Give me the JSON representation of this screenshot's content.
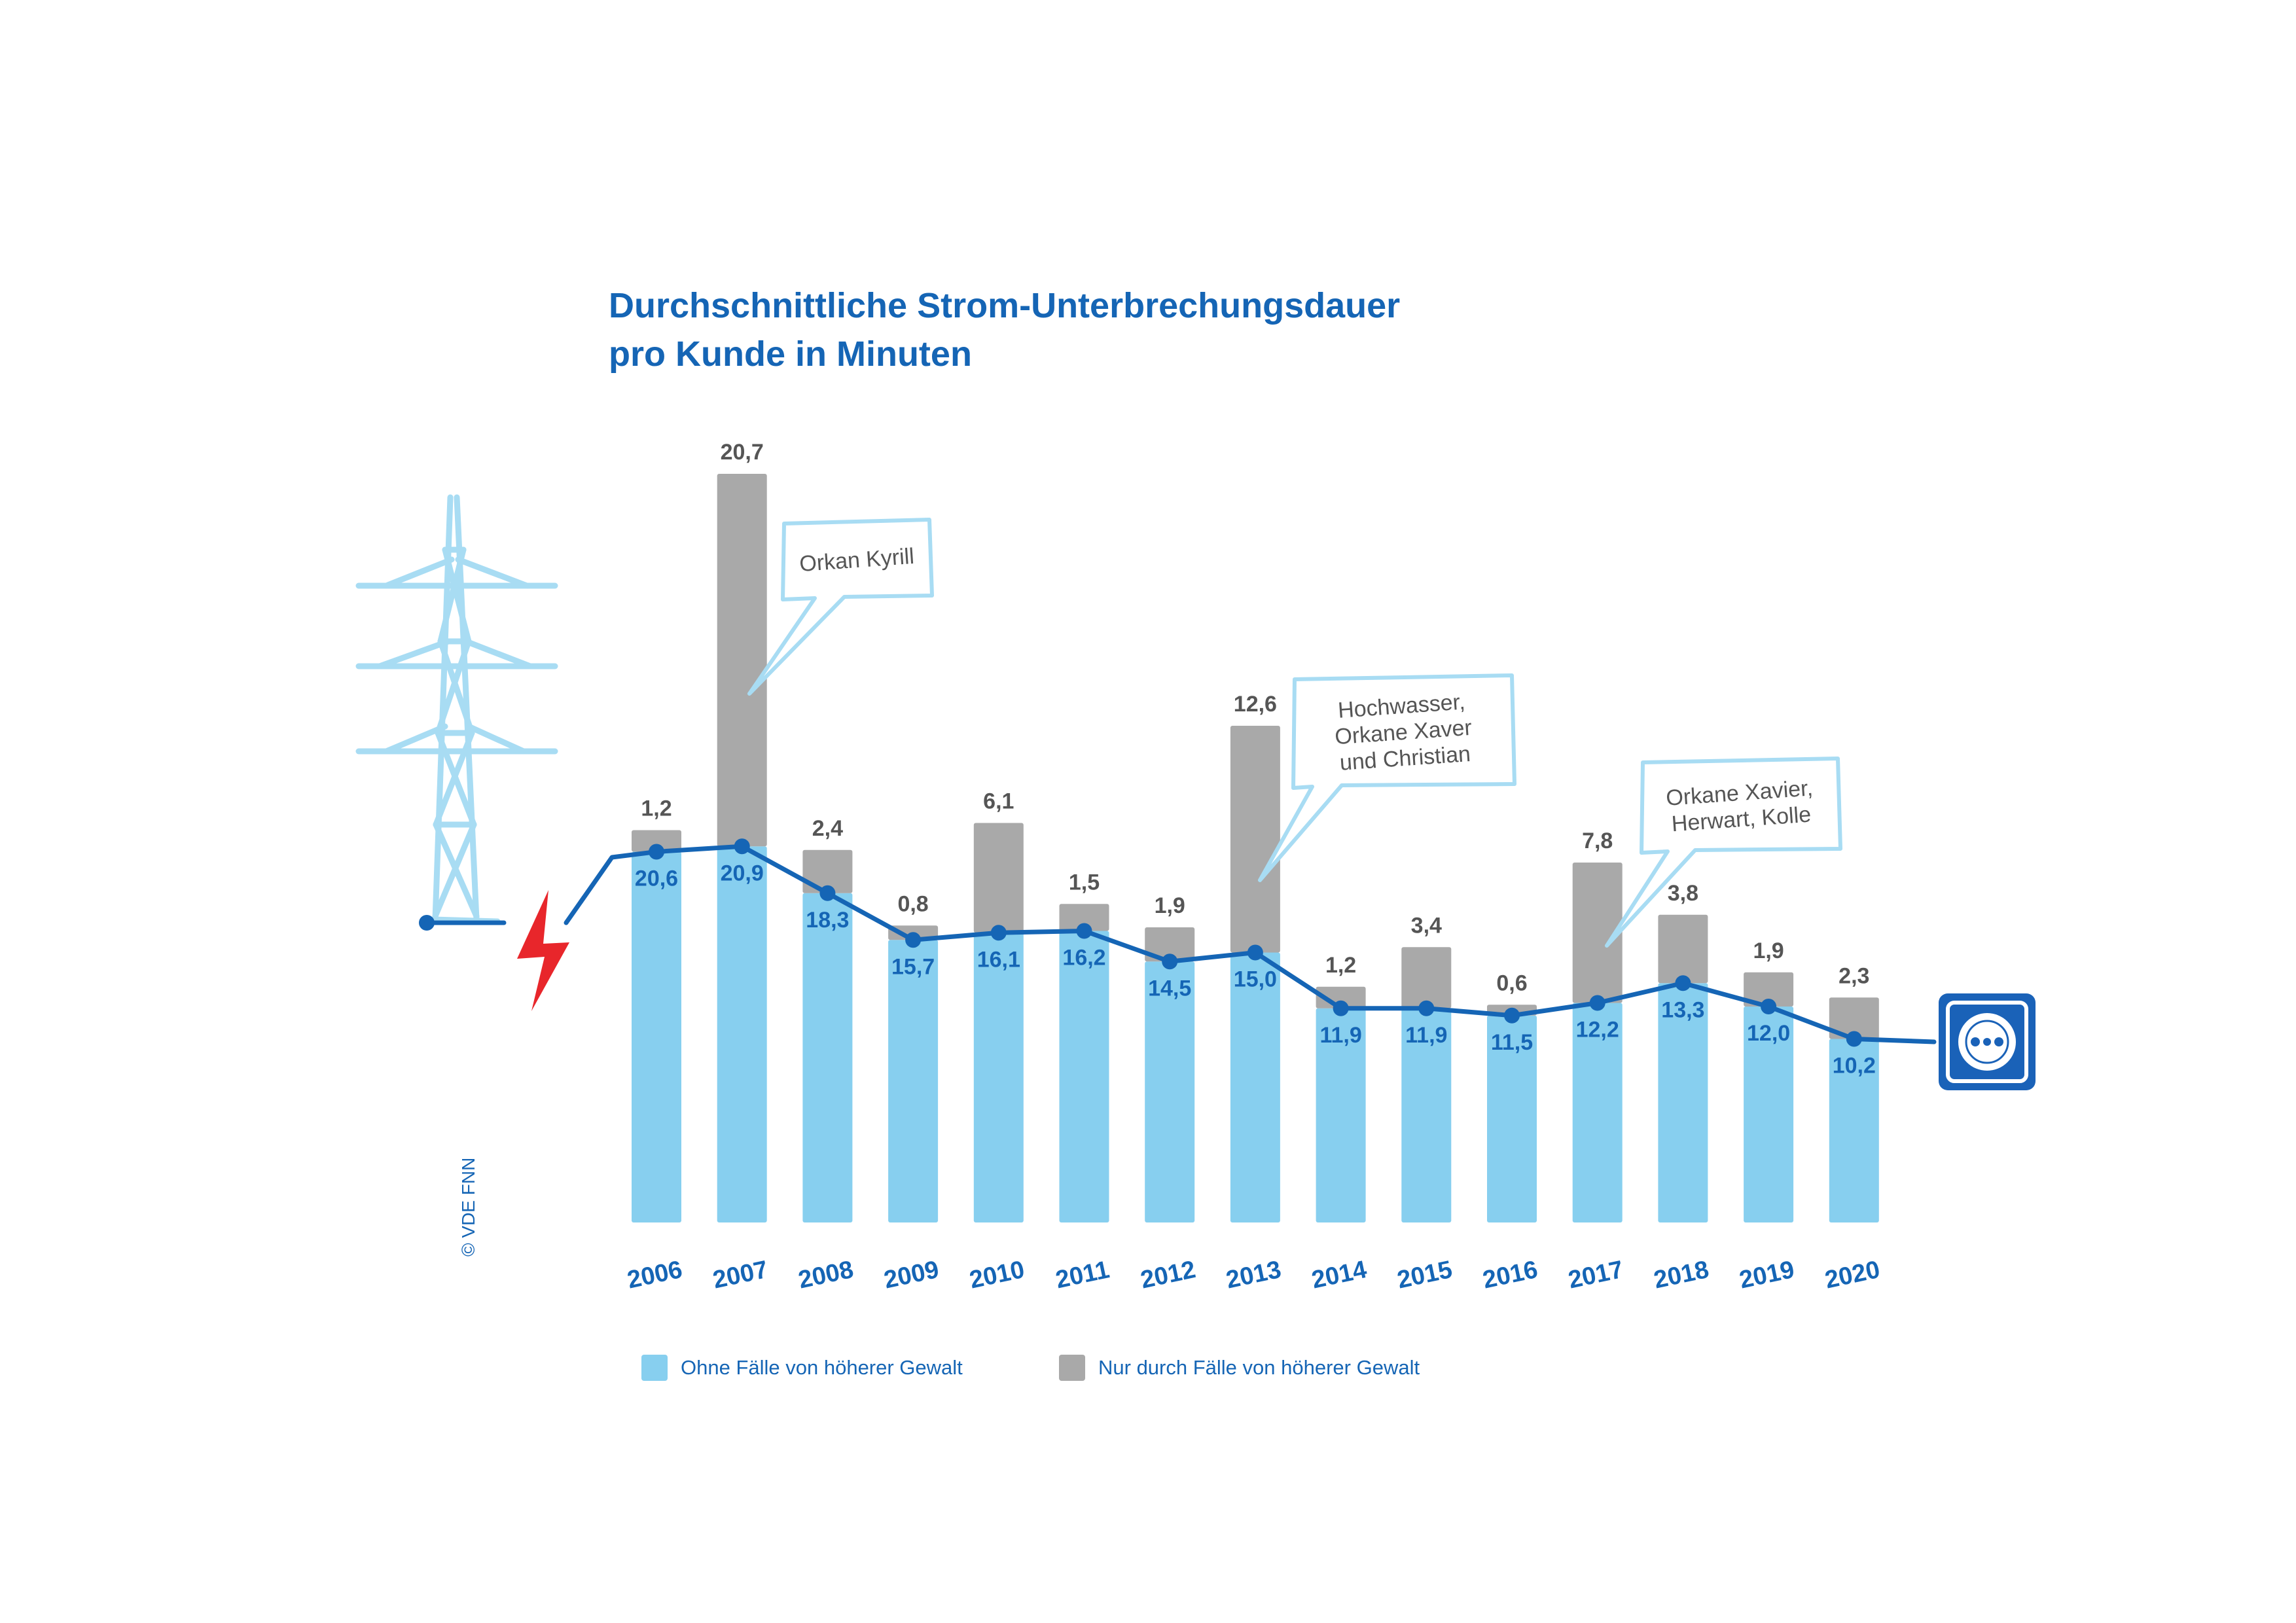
{
  "title_line1": "Durchschnittliche Strom-Unterbrechungsdauer",
  "title_line2": "pro Kunde in Minuten",
  "copyright": "© VDE FNN",
  "colors": {
    "base": "#87cfef",
    "extra": "#a9a9a9",
    "line": "#1565b5",
    "label_dark": "#555555",
    "bubble": "#a8dcf3",
    "tower": "#a8dcf3",
    "lightning": "#e8262b",
    "socket": "#1a62b8"
  },
  "legend": [
    {
      "label": "Ohne Fälle von höherer Gewalt",
      "color": "#87cfef"
    },
    {
      "label": "Nur durch Fälle von höherer Gewalt",
      "color": "#a9a9a9"
    }
  ],
  "icons": [
    "power-pylon-icon",
    "lightning-bolt-icon",
    "power-socket-icon"
  ],
  "chart_data": {
    "type": "bar",
    "stacked": true,
    "categories": [
      "2006",
      "2007",
      "2008",
      "2009",
      "2010",
      "2011",
      "2012",
      "2013",
      "2014",
      "2015",
      "2016",
      "2017",
      "2018",
      "2019",
      "2020"
    ],
    "series": [
      {
        "name": "Ohne Fälle von höherer Gewalt",
        "values": [
          20.6,
          20.9,
          18.3,
          15.7,
          16.1,
          16.2,
          14.5,
          15.0,
          11.9,
          11.9,
          11.5,
          12.2,
          13.3,
          12.0,
          10.2
        ]
      },
      {
        "name": "Nur durch Fälle von höherer Gewalt",
        "values": [
          1.2,
          20.7,
          2.4,
          0.8,
          6.1,
          1.5,
          1.9,
          12.6,
          1.2,
          3.4,
          0.6,
          7.8,
          3.8,
          1.9,
          2.3
        ]
      }
    ],
    "base_labels": [
      "20,6",
      "20,9",
      "18,3",
      "15,7",
      "16,1",
      "16,2",
      "14,5",
      "15,0",
      "11,9",
      "11,9",
      "11,5",
      "12,2",
      "13,3",
      "12,0",
      "10,2"
    ],
    "extra_labels": [
      "1,2",
      "20,7",
      "2,4",
      "0,8",
      "6,1",
      "1,5",
      "1,9",
      "12,6",
      "1,2",
      "3,4",
      "0,6",
      "7,8",
      "3,8",
      "1,9",
      "2,3"
    ],
    "line": {
      "values": [
        20.6,
        20.9,
        18.3,
        15.7,
        16.1,
        16.2,
        14.5,
        15.0,
        11.9,
        11.9,
        11.5,
        12.2,
        13.3,
        12.0,
        10.2
      ]
    },
    "annotations": [
      {
        "year": "2007",
        "lines": [
          "Orkan Kyrill"
        ]
      },
      {
        "year": "2013",
        "lines": [
          "Hochwasser,",
          "Orkane Xaver",
          "und Christian"
        ]
      },
      {
        "year": "2017",
        "lines": [
          "Orkane Xavier,",
          "Herwart, Kolle"
        ]
      }
    ],
    "xlabel": "",
    "ylabel": "",
    "grid": false,
    "legend_position": "bottom-left"
  }
}
